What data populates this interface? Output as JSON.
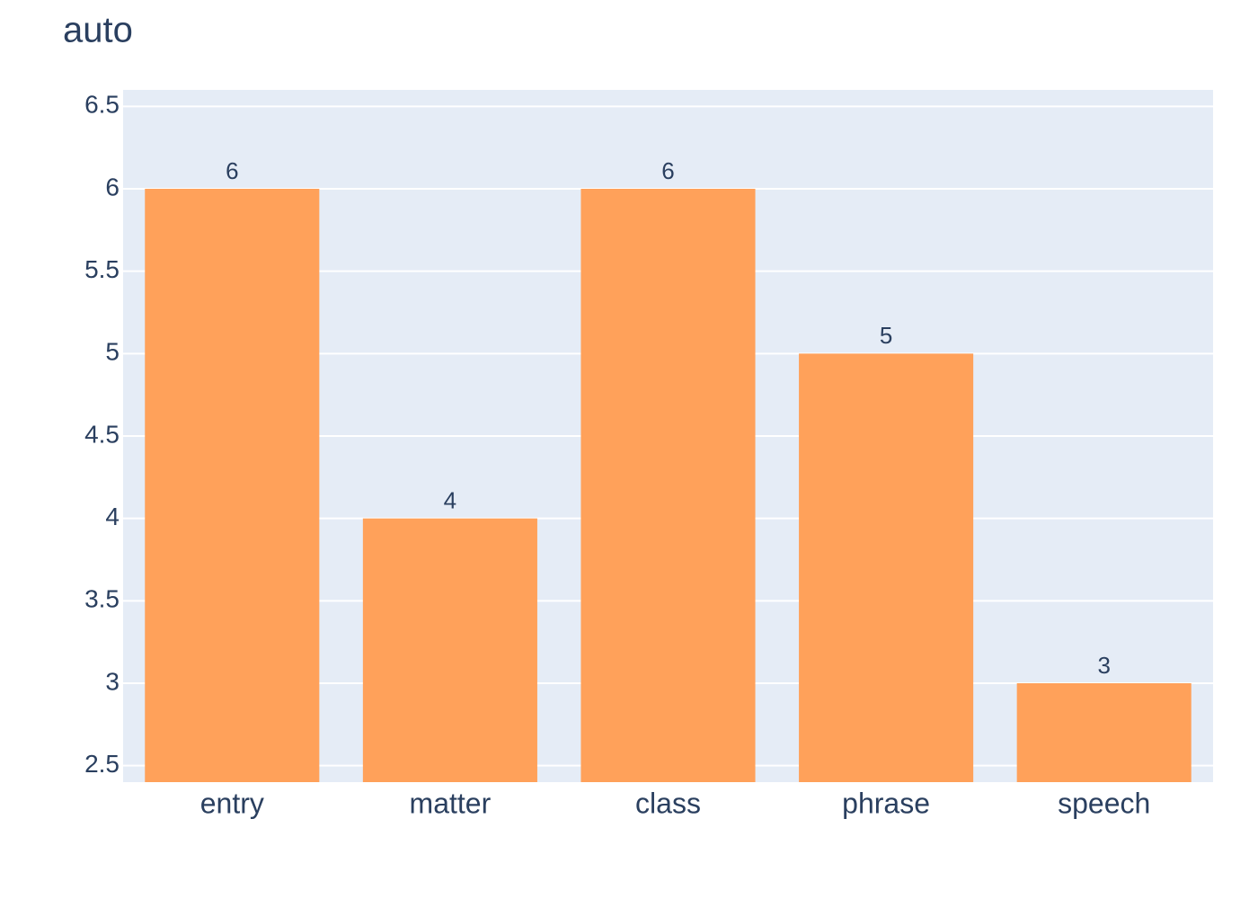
{
  "chart_data": {
    "type": "bar",
    "title": "auto",
    "categories": [
      "entry",
      "matter",
      "class",
      "phrase",
      "speech"
    ],
    "values": [
      6,
      4,
      6,
      5,
      3
    ],
    "color": "#ffa15a",
    "ylim": [
      2.4,
      6.6
    ],
    "yticks": [
      2.5,
      3,
      3.5,
      4,
      4.5,
      5,
      5.5,
      6,
      6.5
    ],
    "grid": true
  }
}
